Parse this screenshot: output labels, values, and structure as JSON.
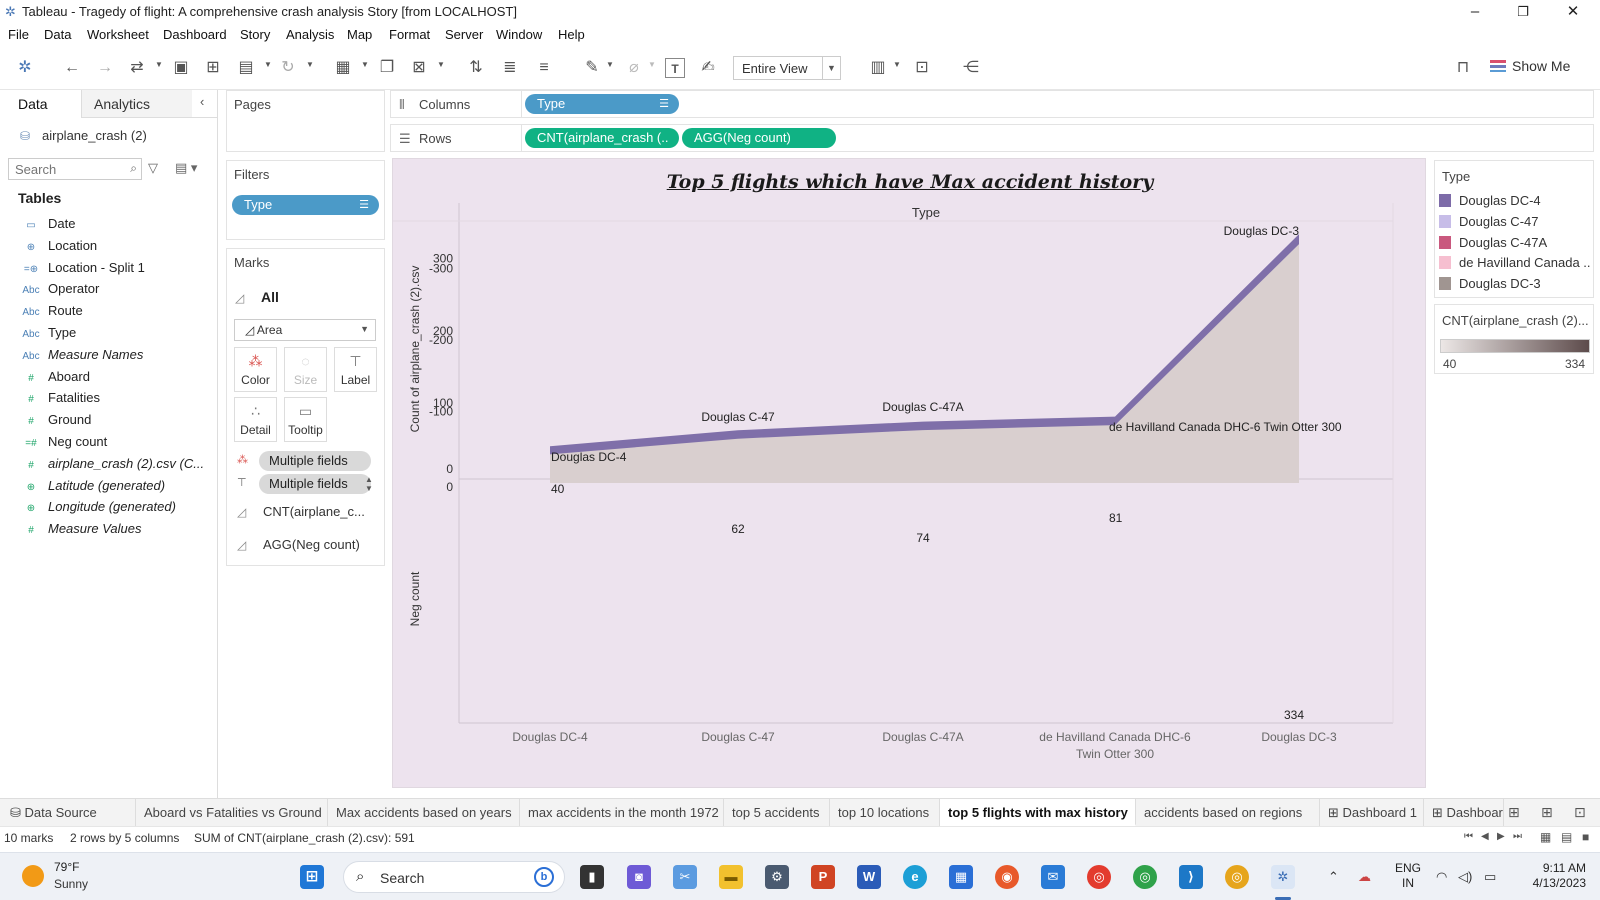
{
  "window": {
    "title": "Tableau - Tragedy of flight: A comprehensive crash analysis Story [from LOCALHOST]",
    "minimize": "–",
    "maximize": "❐",
    "close": "✕"
  },
  "menu": [
    "File",
    "Data",
    "Worksheet",
    "Dashboard",
    "Story",
    "Analysis",
    "Map",
    "Format",
    "Server",
    "Window",
    "Help"
  ],
  "toolbar": {
    "view_select": "Entire View",
    "show_me": "Show Me"
  },
  "data_pane": {
    "tab_data": "Data",
    "tab_analytics": "Analytics",
    "datasource": "airplane_crash (2)",
    "search_placeholder": "Search",
    "tables_header": "Tables",
    "fields": [
      {
        "name": "Date",
        "kind": "dim",
        "icon": "▭"
      },
      {
        "name": "Location",
        "kind": "dim",
        "icon": "⊕"
      },
      {
        "name": "Location - Split 1",
        "kind": "dim",
        "icon": "=⊕"
      },
      {
        "name": "Operator",
        "kind": "dim",
        "icon": "Abc"
      },
      {
        "name": "Route",
        "kind": "dim",
        "icon": "Abc"
      },
      {
        "name": "Type",
        "kind": "dim",
        "icon": "Abc"
      },
      {
        "name": "Measure Names",
        "kind": "dim",
        "icon": "Abc",
        "italic": true
      },
      {
        "name": "Aboard",
        "kind": "meas",
        "icon": "#"
      },
      {
        "name": "Fatalities",
        "kind": "meas",
        "icon": "#"
      },
      {
        "name": "Ground",
        "kind": "meas",
        "icon": "#"
      },
      {
        "name": "Neg count",
        "kind": "meas",
        "icon": "=#"
      },
      {
        "name": "airplane_crash (2).csv (C...",
        "kind": "meas",
        "icon": "#",
        "italic": true
      },
      {
        "name": "Latitude (generated)",
        "kind": "meas",
        "icon": "⊕",
        "italic": true
      },
      {
        "name": "Longitude (generated)",
        "kind": "meas",
        "icon": "⊕",
        "italic": true
      },
      {
        "name": "Measure Values",
        "kind": "meas",
        "icon": "#",
        "italic": true
      }
    ]
  },
  "pages": {
    "header": "Pages"
  },
  "filters": {
    "header": "Filters",
    "pill": "Type"
  },
  "marks": {
    "header": "Marks",
    "all": "All",
    "mark_type": "Area",
    "buttons": {
      "color": "Color",
      "size": "Size",
      "label": "Label",
      "detail": "Detail",
      "tooltip": "Tooltip"
    },
    "multi_1": "Multiple fields",
    "multi_2": "Multiple fields",
    "measure_1": "CNT(airplane_c...",
    "measure_2": "AGG(Neg count)"
  },
  "shelves": {
    "columns_label": "Columns",
    "columns_pill": "Type",
    "rows_label": "Rows",
    "rows_pill_1": "CNT(airplane_crash (..",
    "rows_pill_2": "AGG(Neg count)"
  },
  "legend_type": {
    "header": "Type",
    "items": [
      {
        "label": "Douglas DC-4",
        "color": "#7d6ba8"
      },
      {
        "label": "Douglas C-47",
        "color": "#c7bde8"
      },
      {
        "label": "Douglas C-47A",
        "color": "#c9587e"
      },
      {
        "label": "de Havilland Canada ..",
        "color": "#f6bfd0"
      },
      {
        "label": "Douglas DC-3",
        "color": "#a09591"
      }
    ]
  },
  "legend_cnt": {
    "header": "CNT(airplane_crash (2)...",
    "min": "40",
    "max": "334"
  },
  "chart_data": {
    "type": "area",
    "title": "Top 5 flights which have Max accident history",
    "column_header": "Type",
    "categories": [
      "Douglas DC-4",
      "Douglas C-47",
      "Douglas C-47A",
      "de Havilland Canada DHC-6 Twin Otter 300",
      "Douglas DC-3"
    ],
    "category_ticks": [
      [
        "Douglas DC-4"
      ],
      [
        "Douglas C-47"
      ],
      [
        "Douglas C-47A"
      ],
      [
        "de Havilland Canada DHC-6",
        "Twin Otter 300"
      ],
      [
        "Douglas DC-3"
      ]
    ],
    "top_panel": {
      "ylabel": "Count of airplane_crash (2).csv",
      "ylim": [
        0,
        340
      ],
      "ticks": [
        "0",
        "100",
        "200",
        "300"
      ],
      "tick_values": [
        0,
        100,
        200,
        300
      ],
      "values": [
        40,
        62,
        74,
        81,
        334
      ],
      "labels": [
        "Douglas DC-4",
        "Douglas C-47",
        "Douglas C-47A",
        "de Havilland Canada DHC-6 Twin Otter 300",
        "Douglas DC-3"
      ],
      "color": "#7f6fa9"
    },
    "bottom_panel": {
      "ylabel": "Neg count",
      "ylim": [
        -345,
        0
      ],
      "ticks": [
        "0",
        "-100",
        "-200",
        "-300"
      ],
      "tick_values": [
        0,
        -100,
        -200,
        -300
      ],
      "values": [
        -40,
        -62,
        -74,
        -81,
        -334
      ],
      "labels": [
        "40",
        "62",
        "74",
        "81",
        "334"
      ],
      "color": "#d9cfcf"
    }
  },
  "sheet_tabs": {
    "data_source": "Data Source",
    "tabs": [
      "Aboard vs Fatalities vs Ground",
      "Max accidents based on years",
      "max accidents in the month 1972",
      "top 5 accidents",
      "top 10 locations",
      "top 5 flights with max history",
      "accidents based on regions"
    ],
    "active": "top 5 flights with max history",
    "dashboards": [
      "Dashboard 1",
      "Dashboar"
    ]
  },
  "status": {
    "marks": "10 marks",
    "rows_cols": "2 rows by 5 columns",
    "sum": "SUM of CNT(airplane_crash (2).csv): 591"
  },
  "taskbar": {
    "temp": "79°F",
    "condition": "Sunny",
    "search": "Search",
    "lang_1": "ENG",
    "lang_2": "IN",
    "time": "9:11 AM",
    "date": "4/13/2023"
  }
}
